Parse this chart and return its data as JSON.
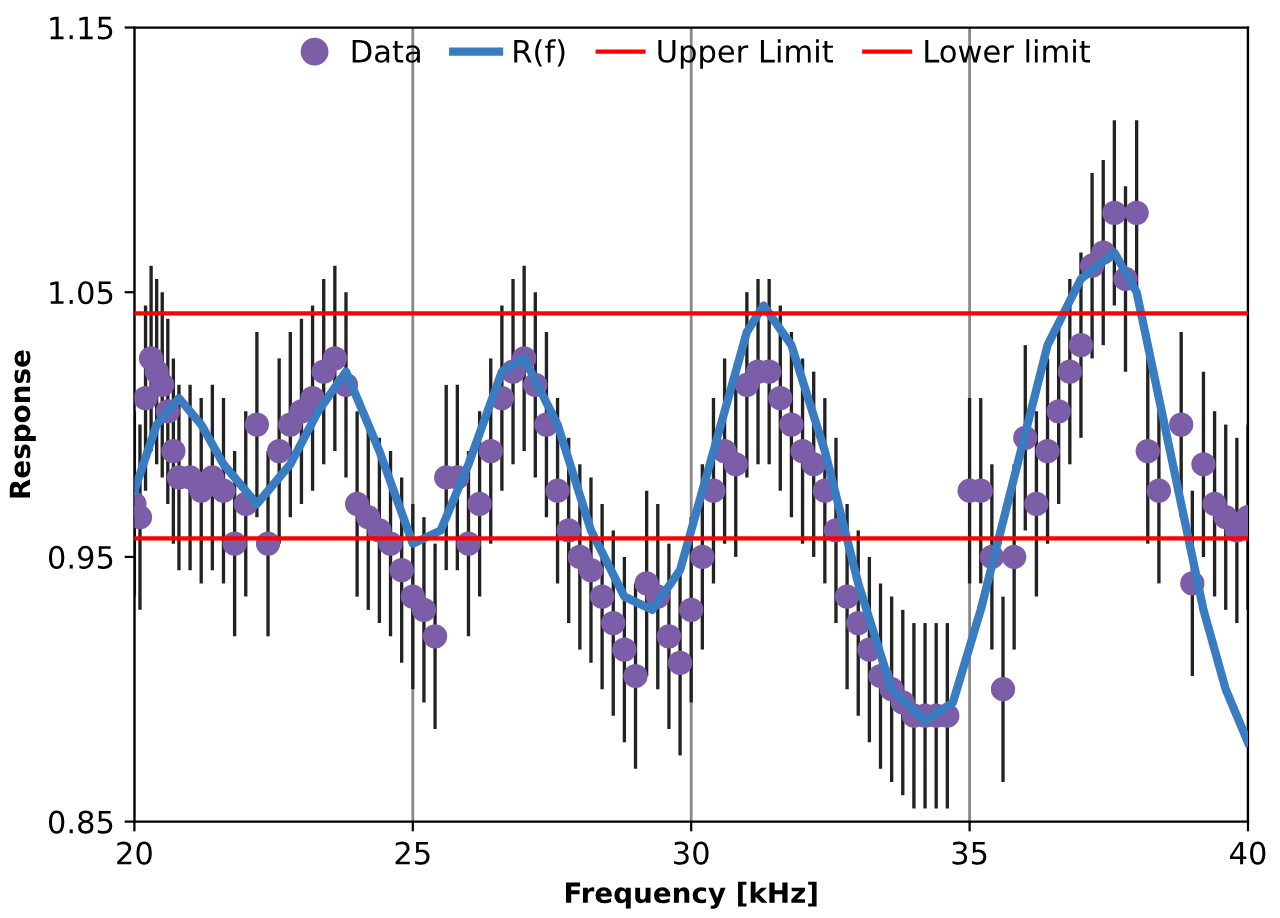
{
  "chart_data": {
    "type": "scatter",
    "xlabel": "Frequency [kHz]",
    "ylabel": "Response",
    "xlim": [
      20,
      40
    ],
    "ylim": [
      0.85,
      1.15
    ],
    "xticks": [
      20,
      25,
      30,
      35,
      40
    ],
    "yticks": [
      {
        "value": 0.85,
        "label": "0.85"
      },
      {
        "value": 0.95,
        "label": "0.95"
      },
      {
        "value": 1.05,
        "label": "1.05"
      },
      {
        "value": 1.15,
        "label": "1.15"
      }
    ],
    "grid": "x",
    "legend": "top",
    "series": [
      {
        "name": "Data",
        "marker": "circle",
        "color": "#7b5ea7",
        "x": [
          20.0,
          20.1,
          20.2,
          20.3,
          20.4,
          20.5,
          20.6,
          20.7,
          20.8,
          21.0,
          21.2,
          21.4,
          21.6,
          21.8,
          22.0,
          22.2,
          22.4,
          22.6,
          22.8,
          23.0,
          23.2,
          23.4,
          23.6,
          23.8,
          24.0,
          24.2,
          24.4,
          24.6,
          24.8,
          25.0,
          25.2,
          25.4,
          25.6,
          25.8,
          26.0,
          26.2,
          26.4,
          26.6,
          26.8,
          27.0,
          27.2,
          27.4,
          27.6,
          27.8,
          28.0,
          28.2,
          28.4,
          28.6,
          28.8,
          29.0,
          29.2,
          29.4,
          29.6,
          29.8,
          30.0,
          30.2,
          30.4,
          30.6,
          30.8,
          31.0,
          31.2,
          31.4,
          31.6,
          31.8,
          32.0,
          32.2,
          32.4,
          32.6,
          32.8,
          33.0,
          33.2,
          33.4,
          33.6,
          33.8,
          34.0,
          34.2,
          34.4,
          34.6,
          35.0,
          35.2,
          35.4,
          35.6,
          35.8,
          36.0,
          36.2,
          36.4,
          36.6,
          36.8,
          37.0,
          37.2,
          37.4,
          37.6,
          37.8,
          38.0,
          38.2,
          38.4,
          38.8,
          39.0,
          39.2,
          39.4,
          39.6,
          39.8,
          40.0
        ],
        "values": [
          0.97,
          0.965,
          1.01,
          1.025,
          1.02,
          1.015,
          1.005,
          0.99,
          0.98,
          0.98,
          0.975,
          0.98,
          0.975,
          0.955,
          0.97,
          1.0,
          0.955,
          0.99,
          1.0,
          1.005,
          1.01,
          1.02,
          1.025,
          1.015,
          0.97,
          0.965,
          0.96,
          0.955,
          0.945,
          0.935,
          0.93,
          0.92,
          0.98,
          0.98,
          0.955,
          0.97,
          0.99,
          1.01,
          1.02,
          1.025,
          1.015,
          1.0,
          0.975,
          0.96,
          0.95,
          0.945,
          0.935,
          0.925,
          0.915,
          0.905,
          0.94,
          0.935,
          0.92,
          0.91,
          0.93,
          0.95,
          0.975,
          0.99,
          0.985,
          1.015,
          1.02,
          1.02,
          1.01,
          1.0,
          0.99,
          0.985,
          0.975,
          0.96,
          0.935,
          0.925,
          0.915,
          0.905,
          0.9,
          0.895,
          0.89,
          0.89,
          0.89,
          0.89,
          0.975,
          0.975,
          0.95,
          0.9,
          0.95,
          0.995,
          0.97,
          0.99,
          1.005,
          1.02,
          1.03,
          1.06,
          1.065,
          1.08,
          1.055,
          1.08,
          0.99,
          0.975,
          1.0,
          0.94,
          0.985,
          0.97,
          0.965,
          0.96,
          0.965
        ],
        "errors": [
          0.035,
          0.035,
          0.035,
          0.035,
          0.035,
          0.035,
          0.035,
          0.035,
          0.035,
          0.035,
          0.035,
          0.035,
          0.035,
          0.035,
          0.035,
          0.035,
          0.035,
          0.035,
          0.035,
          0.035,
          0.035,
          0.035,
          0.035,
          0.035,
          0.035,
          0.035,
          0.035,
          0.035,
          0.035,
          0.035,
          0.035,
          0.035,
          0.035,
          0.035,
          0.035,
          0.035,
          0.035,
          0.035,
          0.035,
          0.035,
          0.035,
          0.035,
          0.035,
          0.035,
          0.035,
          0.035,
          0.035,
          0.035,
          0.035,
          0.035,
          0.035,
          0.035,
          0.035,
          0.035,
          0.035,
          0.035,
          0.035,
          0.035,
          0.035,
          0.035,
          0.035,
          0.035,
          0.035,
          0.035,
          0.035,
          0.035,
          0.035,
          0.035,
          0.035,
          0.035,
          0.035,
          0.035,
          0.035,
          0.035,
          0.035,
          0.035,
          0.035,
          0.035,
          0.035,
          0.035,
          0.035,
          0.035,
          0.035,
          0.035,
          0.035,
          0.035,
          0.035,
          0.035,
          0.035,
          0.035,
          0.035,
          0.035,
          0.035,
          0.035,
          0.035,
          0.035,
          0.035,
          0.035,
          0.035,
          0.035,
          0.035,
          0.035,
          0.035
        ]
      },
      {
        "name": "R(f)",
        "type": "line",
        "color": "#3a7cc2",
        "x": [
          20,
          20.4,
          20.8,
          21.2,
          21.6,
          22.2,
          22.8,
          23.3,
          23.8,
          24.4,
          25.0,
          25.5,
          26.0,
          26.6,
          27.0,
          27.6,
          28.2,
          28.8,
          29.3,
          29.8,
          30.4,
          31.0,
          31.3,
          31.8,
          32.4,
          33.0,
          33.6,
          34.2,
          34.7,
          35.2,
          35.8,
          36.4,
          37.0,
          37.6,
          38.0,
          38.6,
          39.2,
          39.6,
          40.0
        ],
        "values": [
          0.975,
          1.0,
          1.01,
          1.0,
          0.985,
          0.97,
          0.985,
          1.005,
          1.02,
          0.99,
          0.955,
          0.96,
          0.985,
          1.02,
          1.025,
          1.0,
          0.96,
          0.935,
          0.93,
          0.945,
          0.99,
          1.035,
          1.045,
          1.03,
          0.99,
          0.94,
          0.9,
          0.888,
          0.895,
          0.93,
          0.98,
          1.03,
          1.055,
          1.065,
          1.05,
          0.99,
          0.93,
          0.9,
          0.88
        ]
      }
    ],
    "ref_lines": [
      {
        "axis": "y",
        "value": 1.042,
        "label": "Upper Limit",
        "color": "#ff0000"
      },
      {
        "axis": "y",
        "value": 0.957,
        "label": "Lower limit",
        "color": "#ff0000"
      }
    ]
  }
}
